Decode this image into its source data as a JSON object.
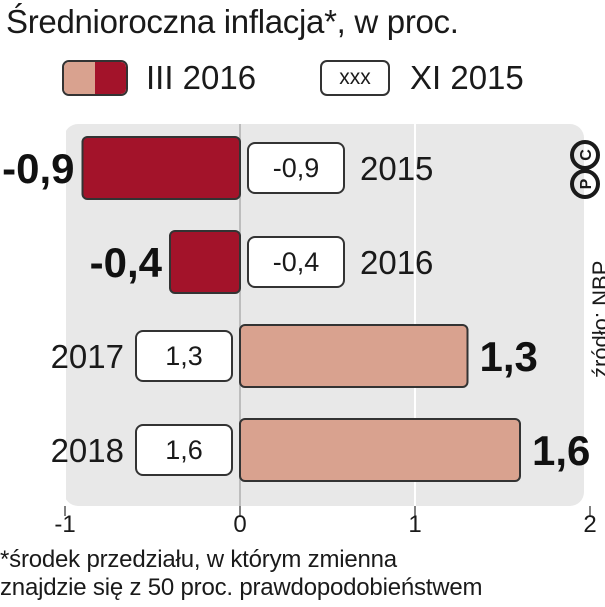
{
  "title": "Średnioroczna inflacja*, w proc.",
  "legend": {
    "series_a_label": "III 2016",
    "series_b_label": "XI 2015",
    "series_b_box_text": "xxx"
  },
  "colors": {
    "negative_fill": "#a3132a",
    "positive_fill": "#d9a28f",
    "plot_background": "#e8e8e8",
    "box_fill": "#ffffff",
    "outline": "#333333"
  },
  "chart_data": {
    "type": "bar",
    "orientation": "horizontal",
    "categories": [
      "2015",
      "2016",
      "2017",
      "2018"
    ],
    "series": [
      {
        "name": "III 2016",
        "values": [
          -0.9,
          -0.4,
          1.3,
          1.6
        ]
      },
      {
        "name": "XI 2015",
        "values": [
          -0.9,
          -0.4,
          1.3,
          1.6
        ]
      }
    ],
    "value_labels": [
      "-0,9",
      "-0,4",
      "1,3",
      "1,6"
    ],
    "box_labels": [
      "-0,9",
      "-0,4",
      "1,3",
      "1,6"
    ],
    "xlim": [
      -1,
      2
    ],
    "x_ticks": [
      "-1",
      "0",
      "1",
      "2"
    ],
    "grid": true
  },
  "footnote": {
    "line1": "*środek przedziału, w którym zmienna",
    "line2": "znajdzie się z 50 proc. prawdopodobieństwem"
  },
  "source": "źródło: NBP",
  "icon": "cp-logo-icon"
}
